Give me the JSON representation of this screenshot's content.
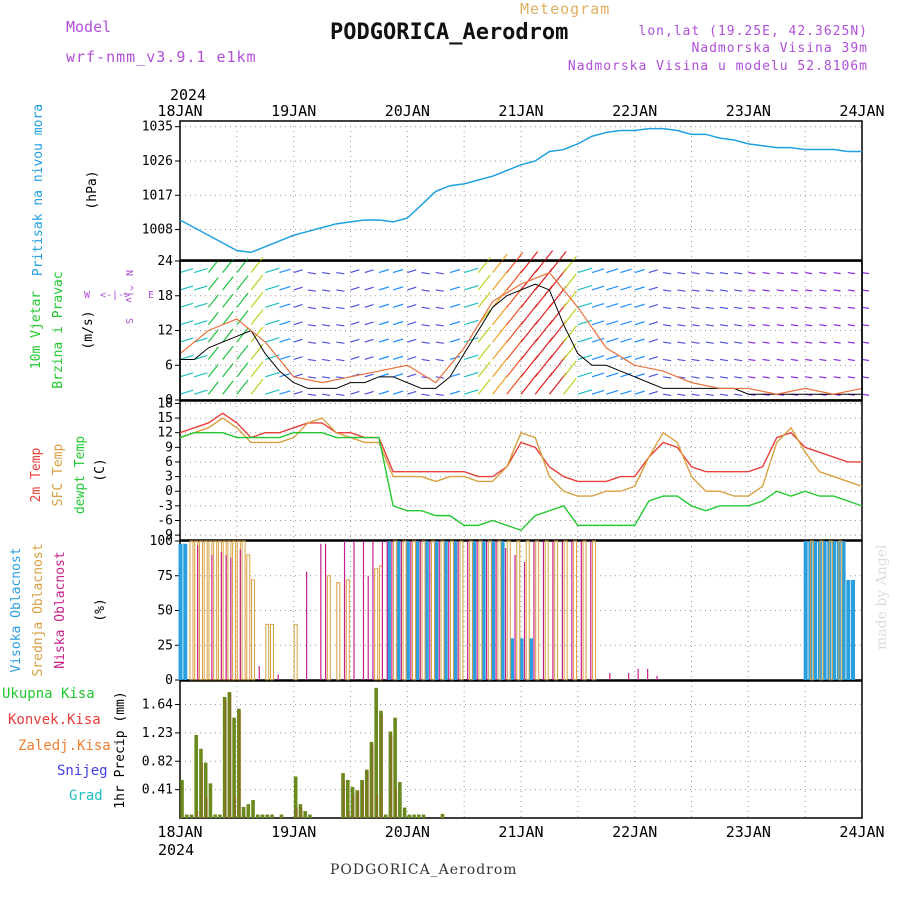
{
  "header": {
    "model_label": "Model",
    "model_version": "wrf-nmm_v3.9.1 e1km",
    "product": "Meteogram",
    "station": "PODGORICA_Aerodrom",
    "lonlat": "lon,lat (19.25E, 42.3625N)",
    "altitude": "Nadmorska Visina 39m",
    "model_altitude": "Nadmorska Visina u modelu 52.8106m"
  },
  "footer": {
    "station": "PODGORICA_Aerodrom",
    "credit": "made by Angel"
  },
  "time_axis": {
    "year": "2024",
    "ticks": [
      "18JAN",
      "19JAN",
      "20JAN",
      "21JAN",
      "22JAN",
      "23JAN",
      "24JAN"
    ]
  },
  "colors": {
    "pressure": "#1fa0e0",
    "temp2m": "#e8403c",
    "sfc_temp": "#d8a040",
    "dewpoint": "#22c830",
    "cloud_high": "#2a9fe0",
    "cloud_mid": "#d8a040",
    "cloud_low": "#c8208c",
    "precip_total": "#6a8a1e",
    "precip_total_label": "#22c830",
    "precip_conv": "#e83c3c",
    "precip_frozen": "#f08030",
    "precip_snow": "#4040e0",
    "precip_grad": "#20c0c0"
  },
  "chart_data": [
    {
      "type": "line",
      "id": "pressure",
      "ylabel_side": "Pritisak na nivou mora",
      "ylabel_unit": "(hPa)",
      "yticks": [
        "1008",
        "1017",
        "1026",
        "1035"
      ],
      "ylim": [
        1000,
        1036.5
      ],
      "grid": true,
      "series": [
        {
          "x": [
            0,
            3,
            6,
            9,
            12,
            15,
            18,
            21,
            24,
            27,
            30,
            33,
            36,
            39,
            42,
            45,
            48,
            51,
            54,
            57,
            60,
            63,
            66,
            69,
            72,
            75,
            78,
            81,
            84,
            87,
            90,
            93,
            96,
            99,
            102,
            105,
            108,
            111,
            114,
            117,
            120,
            123,
            126,
            129,
            132,
            135,
            138,
            141,
            144
          ],
          "values": [
            1010.5,
            1008.5,
            1006.5,
            1004.5,
            1002.5,
            1002,
            1003.5,
            1005,
            1006.5,
            1007.5,
            1008.5,
            1009.5,
            1010,
            1010.5,
            1010.5,
            1010,
            1011,
            1014.5,
            1018,
            1019.5,
            1020,
            1021,
            1022,
            1023.5,
            1025,
            1026,
            1028.5,
            1029,
            1030.5,
            1032.5,
            1033.5,
            1034,
            1034,
            1034.5,
            1034.5,
            1034,
            1033,
            1033,
            1032,
            1031.5,
            1030.5,
            1030,
            1029.5,
            1029.5,
            1029,
            1029,
            1029,
            1028.5,
            1028.5
          ]
        }
      ]
    },
    {
      "type": "line",
      "id": "wind",
      "ylabel_side": [
        "10m Vjetar",
        "Brzina i Pravac"
      ],
      "ylabel_unit": "(m/s)",
      "compass": [
        "W",
        "<-|->",
        "E",
        "N",
        "^|v",
        "S"
      ],
      "yticks": [
        "0",
        "6",
        "12",
        "18",
        "24"
      ],
      "ylim": [
        0,
        24
      ],
      "grid": true,
      "series": [
        {
          "name": "speed",
          "x": [
            0,
            3,
            6,
            9,
            12,
            15,
            18,
            21,
            24,
            27,
            30,
            33,
            36,
            39,
            42,
            45,
            48,
            51,
            54,
            57,
            60,
            63,
            66,
            69,
            72,
            75,
            78,
            81,
            84,
            87,
            90,
            93,
            96,
            99,
            102,
            105,
            108,
            111,
            114,
            117,
            120,
            123,
            126,
            129,
            132,
            135,
            138,
            141,
            144
          ],
          "values": [
            7,
            7,
            9,
            10,
            11,
            12,
            8,
            5,
            3,
            2,
            2,
            2,
            3,
            3,
            4,
            4,
            3,
            2,
            2,
            4,
            8,
            12,
            16,
            18,
            19,
            20,
            19,
            13,
            8,
            6,
            6,
            5,
            4,
            3,
            2,
            2,
            2,
            2,
            2,
            2,
            1,
            1,
            1,
            1,
            1,
            1,
            1,
            1,
            1
          ]
        },
        {
          "name": "gust",
          "x": [
            0,
            6,
            12,
            18,
            24,
            30,
            36,
            42,
            48,
            54,
            60,
            66,
            72,
            78,
            84,
            90,
            96,
            102,
            108,
            114,
            120,
            126,
            132,
            138,
            144
          ],
          "values": [
            8,
            12,
            14,
            10,
            4,
            3,
            4,
            5,
            6,
            3,
            9,
            17,
            20,
            22,
            16,
            9,
            6,
            5,
            3,
            2,
            2,
            1,
            2,
            1,
            2
          ]
        }
      ]
    },
    {
      "type": "line",
      "id": "temperature",
      "ylabel_side": [
        "2m Temp",
        "SFC Temp",
        "dewpt Temp"
      ],
      "ylabel_unit": "(C)",
      "yticks": [
        "-9",
        "-6",
        "-3",
        "0",
        "3",
        "6",
        "9",
        "12",
        "15",
        "18"
      ],
      "ylim": [
        -10,
        18.5
      ],
      "grid": true,
      "series": [
        {
          "name": "2m Temp",
          "x": [
            0,
            3,
            6,
            9,
            12,
            15,
            18,
            21,
            24,
            27,
            30,
            33,
            36,
            39,
            42,
            45,
            48,
            51,
            54,
            57,
            60,
            63,
            66,
            69,
            72,
            75,
            78,
            81,
            84,
            87,
            90,
            93,
            96,
            99,
            102,
            105,
            108,
            111,
            114,
            117,
            120,
            123,
            126,
            129,
            132,
            135,
            138,
            141,
            144
          ],
          "values": [
            12,
            13,
            14,
            16,
            14,
            11,
            12,
            12,
            13,
            14,
            14,
            12,
            12,
            11,
            11,
            4,
            4,
            4,
            4,
            4,
            4,
            3,
            3,
            5,
            10,
            9,
            5,
            3,
            2,
            2,
            2,
            3,
            3,
            7,
            10,
            9,
            5,
            4,
            4,
            4,
            4,
            5,
            11,
            12,
            9,
            8,
            7,
            6,
            6
          ]
        },
        {
          "name": "SFC Temp",
          "x": [
            0,
            3,
            6,
            9,
            12,
            15,
            18,
            21,
            24,
            27,
            30,
            33,
            36,
            39,
            42,
            45,
            48,
            51,
            54,
            57,
            60,
            63,
            66,
            69,
            72,
            75,
            78,
            81,
            84,
            87,
            90,
            93,
            96,
            99,
            102,
            105,
            108,
            111,
            114,
            117,
            120,
            123,
            126,
            129,
            132,
            135,
            138,
            141,
            144
          ],
          "values": [
            11,
            12,
            13,
            15,
            13,
            10,
            10,
            10,
            11,
            14,
            15,
            12,
            11,
            10,
            10,
            3,
            3,
            3,
            2,
            3,
            3,
            2,
            2,
            5,
            12,
            11,
            3,
            0,
            -1,
            -1,
            0,
            0,
            1,
            7,
            12,
            10,
            3,
            0,
            0,
            -1,
            -1,
            1,
            10,
            13,
            8,
            4,
            3,
            2,
            1
          ]
        },
        {
          "name": "dewpt Temp",
          "x": [
            0,
            3,
            6,
            9,
            12,
            15,
            18,
            21,
            24,
            27,
            30,
            33,
            36,
            39,
            42,
            45,
            48,
            51,
            54,
            57,
            60,
            63,
            66,
            69,
            72,
            75,
            78,
            81,
            84,
            87,
            90,
            93,
            96,
            99,
            102,
            105,
            108,
            111,
            114,
            117,
            120,
            123,
            126,
            129,
            132,
            135,
            138,
            141,
            144
          ],
          "values": [
            11,
            12,
            12,
            12,
            11,
            11,
            11,
            11,
            12,
            12,
            12,
            11,
            11,
            11,
            11,
            -3,
            -4,
            -4,
            -5,
            -5,
            -7,
            -7,
            -6,
            -7,
            -8,
            -5,
            -4,
            -3,
            -7,
            -7,
            -7,
            -7,
            -7,
            -2,
            -1,
            -1,
            -3,
            -4,
            -3,
            -3,
            -3,
            -2,
            0,
            -1,
            0,
            -1,
            -1,
            -2,
            -3
          ]
        }
      ]
    },
    {
      "type": "bar",
      "id": "cloud",
      "ylabel_side": [
        "Visoka Oblacnost",
        "Srednja Oblacnost",
        "Niska Oblacnost"
      ],
      "ylabel_unit": "(%)",
      "yticks": [
        "0",
        "25",
        "50",
        "75",
        "100"
      ],
      "ylim": [
        0,
        100
      ],
      "grid": true,
      "series": [
        {
          "name": "Visoka Oblacnost",
          "x": [
            0,
            1,
            44,
            46,
            48,
            50,
            52,
            54,
            56,
            58,
            62,
            64,
            66,
            68,
            70,
            72,
            74,
            132,
            133,
            134,
            135,
            136,
            137,
            138,
            139,
            140,
            141,
            142
          ],
          "values": [
            98,
            98,
            100,
            100,
            100,
            100,
            100,
            100,
            100,
            100,
            100,
            100,
            100,
            100,
            30,
            30,
            30,
            100,
            100,
            100,
            100,
            100,
            100,
            100,
            100,
            100,
            72,
            72
          ]
        },
        {
          "name": "Srednja Oblacnost",
          "x": [
            2,
            3,
            4,
            5,
            6,
            7,
            8,
            9,
            10,
            11,
            12,
            13,
            14,
            15,
            18,
            19,
            24,
            31,
            33,
            35,
            41,
            42,
            45,
            47,
            49,
            51,
            53,
            55,
            57,
            59,
            61,
            63,
            65,
            67,
            69,
            71,
            73,
            75,
            77,
            79,
            81,
            83,
            85,
            87,
            89,
            91,
            93,
            95,
            97,
            99,
            101,
            103,
            105,
            107,
            109,
            111,
            113,
            115,
            117,
            119,
            121,
            123,
            125,
            127,
            129,
            131,
            133,
            135,
            137,
            139
          ],
          "values": [
            100,
            100,
            100,
            100,
            100,
            100,
            100,
            100,
            100,
            100,
            100,
            100,
            90,
            72,
            40,
            40,
            40,
            75,
            70,
            72,
            80,
            82,
            100,
            100,
            100,
            100,
            100,
            100,
            100,
            100,
            100,
            100,
            100,
            100,
            100,
            100,
            100,
            100,
            100,
            100,
            100,
            100,
            100,
            100,
            0,
            0,
            0,
            0,
            0,
            0,
            0,
            0,
            0,
            0,
            0,
            0,
            0,
            0,
            0,
            0,
            0,
            0,
            0,
            0,
            0,
            0,
            100,
            100,
            100,
            100
          ]
        },
        {
          "name": "Niska Oblacnost",
          "x": [
            3,
            6,
            8,
            9,
            10,
            12,
            16,
            20,
            26,
            29,
            30,
            34,
            36,
            38,
            39,
            40,
            42,
            43,
            44,
            46,
            48,
            50,
            52,
            54,
            56,
            58,
            60,
            62,
            64,
            66,
            68,
            70,
            72,
            74,
            76,
            78,
            80,
            82,
            84,
            86,
            90,
            94,
            96,
            98,
            100
          ],
          "values": [
            97,
            90,
            92,
            90,
            88,
            94,
            10,
            4,
            78,
            98,
            98,
            100,
            100,
            100,
            75,
            100,
            100,
            100,
            100,
            100,
            100,
            100,
            100,
            100,
            100,
            100,
            100,
            100,
            100,
            100,
            95,
            90,
            85,
            100,
            100,
            100,
            100,
            100,
            100,
            100,
            5,
            5,
            8,
            8,
            3
          ]
        }
      ]
    },
    {
      "type": "bar",
      "id": "precip",
      "ylabel_side": "1hr Precip (mm)",
      "legend": [
        "Ukupna Kisa",
        "Konvek.Kisa",
        "Zaledj.Kisa",
        "Snijeg",
        "Grad"
      ],
      "yticks": [
        "0.41",
        "0.82",
        "1.23",
        "1.64"
      ],
      "ylim": [
        0,
        1.98
      ],
      "grid": true,
      "series": [
        {
          "name": "Ukupna Kisa",
          "x": [
            0,
            1,
            2,
            3,
            4,
            5,
            6,
            7,
            8,
            9,
            10,
            11,
            12,
            13,
            14,
            15,
            16,
            17,
            18,
            19,
            21,
            24,
            25,
            26,
            27,
            34,
            35,
            36,
            37,
            38,
            39,
            40,
            41,
            42,
            43,
            44,
            45,
            46,
            47,
            48,
            49,
            50,
            51,
            55
          ],
          "values": [
            0.55,
            0.05,
            0.05,
            1.2,
            1.0,
            0.8,
            0.5,
            0.05,
            0.05,
            1.75,
            1.82,
            1.45,
            1.58,
            0.16,
            0.2,
            0.26,
            0.05,
            0.05,
            0.05,
            0.05,
            0.05,
            0.6,
            0.2,
            0.1,
            0.05,
            0.65,
            0.55,
            0.45,
            0.4,
            0.55,
            0.7,
            1.1,
            1.88,
            1.55,
            0.05,
            1.25,
            1.45,
            0.52,
            0.15,
            0.05,
            0.05,
            0.05,
            0.05,
            0.06
          ]
        },
        {
          "name": "Konvek.Kisa",
          "x": [
            3,
            4,
            5,
            9,
            10,
            11,
            12,
            13,
            24,
            25,
            34,
            35,
            36,
            37,
            38,
            39,
            40,
            41,
            42,
            44,
            45
          ],
          "values": [
            0.1,
            0.8,
            0.3,
            1.7,
            1.8,
            0.3,
            1.55,
            0.05,
            0.15,
            0.15,
            0.55,
            0.1,
            0.35,
            0.4,
            0.52,
            0.68,
            1.05,
            0.35,
            1.5,
            1.2,
            0.4
          ]
        }
      ]
    }
  ]
}
